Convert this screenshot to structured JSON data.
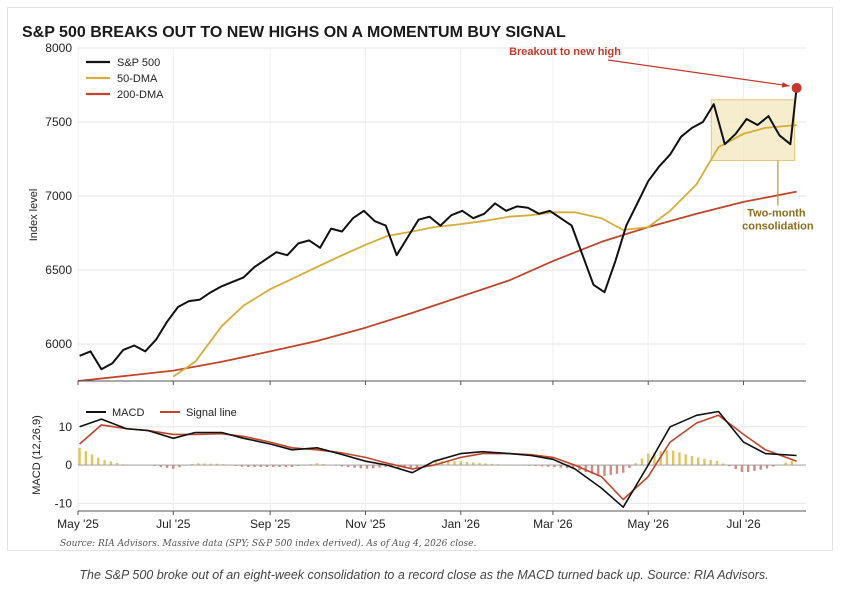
{
  "chart_data": [
    {
      "type": "line",
      "title": "S&P 500 BREAKS OUT TO NEW HIGHS ON A MOMENTUM BUY SIGNAL",
      "ylabel": "Index level",
      "xlabel": "",
      "ylim": [
        5750,
        8000
      ],
      "yticks": [
        6000,
        6500,
        7000,
        7500,
        8000
      ],
      "x_range": [
        "2025-05-01",
        "2026-08-10"
      ],
      "legend_position": "top-left",
      "grid": true,
      "series": [
        {
          "name": "S&P 500",
          "color": "#111111",
          "x": [
            "2025-05-02",
            "2025-05-09",
            "2025-05-16",
            "2025-05-23",
            "2025-05-30",
            "2025-06-06",
            "2025-06-13",
            "2025-06-20",
            "2025-06-27",
            "2025-07-04",
            "2025-07-11",
            "2025-07-18",
            "2025-07-25",
            "2025-08-01",
            "2025-08-08",
            "2025-08-15",
            "2025-08-22",
            "2025-08-29",
            "2025-09-05",
            "2025-09-12",
            "2025-09-19",
            "2025-09-26",
            "2025-10-03",
            "2025-10-10",
            "2025-10-17",
            "2025-10-24",
            "2025-10-31",
            "2025-11-07",
            "2025-11-14",
            "2025-11-21",
            "2025-11-28",
            "2025-12-05",
            "2025-12-12",
            "2025-12-19",
            "2025-12-26",
            "2026-01-02",
            "2026-01-09",
            "2026-01-16",
            "2026-01-23",
            "2026-01-30",
            "2026-02-06",
            "2026-02-13",
            "2026-02-20",
            "2026-02-27",
            "2026-03-06",
            "2026-03-13",
            "2026-03-20",
            "2026-03-27",
            "2026-04-03",
            "2026-04-10",
            "2026-04-17",
            "2026-04-24",
            "2026-05-01",
            "2026-05-08",
            "2026-05-15",
            "2026-05-22",
            "2026-05-29",
            "2026-06-05",
            "2026-06-12",
            "2026-06-19",
            "2026-06-26",
            "2026-07-03",
            "2026-07-10",
            "2026-07-17",
            "2026-07-24",
            "2026-07-31",
            "2026-08-04"
          ],
          "values": [
            5920,
            5950,
            5830,
            5870,
            5960,
            5990,
            5950,
            6030,
            6150,
            6250,
            6290,
            6300,
            6350,
            6390,
            6420,
            6450,
            6520,
            6570,
            6620,
            6600,
            6680,
            6700,
            6650,
            6780,
            6760,
            6850,
            6900,
            6830,
            6800,
            6600,
            6720,
            6840,
            6860,
            6800,
            6870,
            6900,
            6850,
            6880,
            6950,
            6900,
            6930,
            6920,
            6880,
            6900,
            6850,
            6800,
            6600,
            6400,
            6350,
            6560,
            6800,
            6950,
            7100,
            7200,
            7280,
            7400,
            7460,
            7500,
            7620,
            7350,
            7420,
            7520,
            7480,
            7540,
            7410,
            7350,
            7730
          ]
        },
        {
          "name": "50-DMA",
          "color": "#d4ad3a",
          "x": [
            "2025-07-01",
            "2025-07-15",
            "2025-08-01",
            "2025-08-15",
            "2025-09-01",
            "2025-09-15",
            "2025-10-01",
            "2025-10-15",
            "2025-11-01",
            "2025-11-15",
            "2025-12-01",
            "2025-12-15",
            "2026-01-01",
            "2026-01-15",
            "2026-02-01",
            "2026-02-15",
            "2026-03-01",
            "2026-03-15",
            "2026-04-01",
            "2026-04-15",
            "2026-05-01",
            "2026-05-15",
            "2026-06-01",
            "2026-06-15",
            "2026-07-01",
            "2026-07-15",
            "2026-08-04"
          ],
          "values": [
            5780,
            5880,
            6120,
            6260,
            6370,
            6440,
            6520,
            6590,
            6670,
            6730,
            6760,
            6790,
            6810,
            6830,
            6860,
            6870,
            6890,
            6890,
            6850,
            6770,
            6790,
            6900,
            7080,
            7330,
            7420,
            7460,
            7480
          ]
        },
        {
          "name": "200-DMA",
          "color": "#c0452c",
          "x": [
            "2025-05-01",
            "2025-06-01",
            "2025-07-01",
            "2025-08-01",
            "2025-09-01",
            "2025-10-01",
            "2025-11-01",
            "2025-12-01",
            "2026-01-01",
            "2026-02-01",
            "2026-03-01",
            "2026-04-01",
            "2026-05-01",
            "2026-06-01",
            "2026-07-01",
            "2026-08-04"
          ],
          "values": [
            5750,
            5785,
            5820,
            5880,
            5950,
            6020,
            6110,
            6210,
            6320,
            6430,
            6560,
            6690,
            6790,
            6880,
            6960,
            7030
          ]
        }
      ],
      "annotations": [
        {
          "text": "Breakout to new high",
          "x": "2026-08-04",
          "y": 7730
        },
        {
          "text": "Two-month consolidation",
          "x_range": [
            "2026-06-11",
            "2026-08-04"
          ],
          "y_range": [
            7240,
            7650
          ]
        }
      ]
    },
    {
      "type": "line",
      "title": "",
      "ylabel": "MACD (12,26,9)",
      "xlabel": "",
      "ylim": [
        -12,
        17
      ],
      "yticks": [
        -10,
        0,
        10
      ],
      "x_range": [
        "2025-05-01",
        "2026-08-10"
      ],
      "xticks": [
        {
          "date": "2025-05-01",
          "label": "May '25"
        },
        {
          "date": "2025-07-01",
          "label": "Jul '25"
        },
        {
          "date": "2025-09-01",
          "label": "Sep '25"
        },
        {
          "date": "2025-11-01",
          "label": "Nov '25"
        },
        {
          "date": "2026-01-01",
          "label": "Jan '26"
        },
        {
          "date": "2026-03-01",
          "label": "Mar '26"
        },
        {
          "date": "2026-05-01",
          "label": "May '26"
        },
        {
          "date": "2026-07-01",
          "label": "Jul '26"
        }
      ],
      "legend_position": "top-left",
      "grid": true,
      "series": [
        {
          "name": "MACD",
          "color": "#111111",
          "x": [
            "2025-05-02",
            "2025-05-16",
            "2025-06-01",
            "2025-06-15",
            "2025-07-01",
            "2025-07-15",
            "2025-08-01",
            "2025-08-15",
            "2025-09-01",
            "2025-09-15",
            "2025-10-01",
            "2025-10-15",
            "2025-11-01",
            "2025-11-15",
            "2025-12-01",
            "2025-12-15",
            "2026-01-01",
            "2026-01-15",
            "2026-02-01",
            "2026-02-15",
            "2026-03-01",
            "2026-03-15",
            "2026-04-01",
            "2026-04-15",
            "2026-05-01",
            "2026-05-15",
            "2026-06-01",
            "2026-06-15",
            "2026-07-01",
            "2026-07-15",
            "2026-08-04"
          ],
          "values": [
            10,
            12,
            9.5,
            9,
            7,
            8.5,
            8.5,
            7,
            5.5,
            4,
            4.5,
            3,
            1,
            0,
            -2,
            1,
            3,
            3.5,
            3,
            2.5,
            1.5,
            -1,
            -6,
            -11,
            0,
            10,
            13,
            14,
            6,
            3,
            2.5
          ]
        },
        {
          "name": "Signal line",
          "color": "#c0452c",
          "x": [
            "2025-05-02",
            "2025-05-16",
            "2025-06-01",
            "2025-06-15",
            "2025-07-01",
            "2025-07-15",
            "2025-08-01",
            "2025-08-15",
            "2025-09-01",
            "2025-09-15",
            "2025-10-01",
            "2025-10-15",
            "2025-11-01",
            "2025-11-15",
            "2025-12-01",
            "2025-12-15",
            "2026-01-01",
            "2026-01-15",
            "2026-02-01",
            "2026-02-15",
            "2026-03-01",
            "2026-03-15",
            "2026-04-01",
            "2026-04-15",
            "2026-05-01",
            "2026-05-15",
            "2026-06-01",
            "2026-06-15",
            "2026-07-01",
            "2026-07-15",
            "2026-08-04"
          ],
          "values": [
            5.5,
            10.5,
            9.5,
            9,
            8,
            8,
            8.2,
            7.5,
            6,
            4.5,
            4,
            3.3,
            2,
            0.5,
            -1,
            0,
            2,
            3,
            3,
            2.7,
            2,
            0,
            -3,
            -9,
            -3,
            6,
            11,
            13,
            8,
            4,
            1
          ]
        }
      ],
      "histogram_name": "MACD − Signal",
      "histogram_colors": {
        "positive": "#e2c35e",
        "negative": "#d48a80"
      }
    }
  ],
  "source": "Source: RIA Advisors. Massive data (SPY; S&P 500 index derived). As of Aug 4, 2026 close.",
  "caption": "The S&P 500 broke out of an eight-week consolidation to a record close as the MACD turned back up. Source: RIA Advisors."
}
